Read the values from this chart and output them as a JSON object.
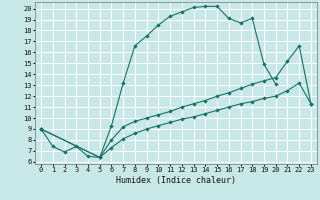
{
  "xlabel": "Humidex (Indice chaleur)",
  "bg_color": "#c8e8e8",
  "grid_color": "#ffffff",
  "line_color": "#1a7068",
  "xlim": [
    -0.5,
    23.5
  ],
  "ylim": [
    5.8,
    20.6
  ],
  "xticks": [
    0,
    1,
    2,
    3,
    4,
    5,
    6,
    7,
    8,
    9,
    10,
    11,
    12,
    13,
    14,
    15,
    16,
    17,
    18,
    19,
    20,
    21,
    22,
    23
  ],
  "yticks": [
    6,
    7,
    8,
    9,
    10,
    11,
    12,
    13,
    14,
    15,
    16,
    17,
    18,
    19,
    20
  ],
  "line1_x": [
    0,
    1,
    2,
    3,
    4,
    5,
    6,
    7,
    8,
    9,
    10,
    11,
    12,
    13,
    14,
    15,
    16,
    17,
    18,
    19,
    20
  ],
  "line1_y": [
    9,
    7.4,
    6.9,
    7.4,
    6.5,
    6.4,
    9.3,
    13.2,
    16.6,
    17.5,
    18.5,
    19.3,
    19.7,
    20.1,
    20.2,
    20.2,
    19.1,
    18.7,
    19.1,
    14.9,
    13.1
  ],
  "line2_x": [
    0,
    5,
    6,
    7,
    8,
    9,
    10,
    11,
    12,
    13,
    14,
    15,
    16,
    17,
    18,
    19,
    20,
    21,
    22,
    23
  ],
  "line2_y": [
    9,
    6.4,
    8.0,
    9.2,
    9.7,
    10.0,
    10.3,
    10.6,
    11.0,
    11.3,
    11.6,
    12.0,
    12.3,
    12.7,
    13.1,
    13.4,
    13.7,
    15.2,
    16.6,
    11.3
  ],
  "line3_x": [
    0,
    5,
    6,
    7,
    8,
    9,
    10,
    11,
    12,
    13,
    14,
    15,
    16,
    17,
    18,
    19,
    20,
    21,
    22,
    23
  ],
  "line3_y": [
    9,
    6.4,
    7.3,
    8.1,
    8.6,
    9.0,
    9.3,
    9.6,
    9.9,
    10.1,
    10.4,
    10.7,
    11.0,
    11.3,
    11.5,
    11.8,
    12.0,
    12.5,
    13.2,
    11.3
  ]
}
